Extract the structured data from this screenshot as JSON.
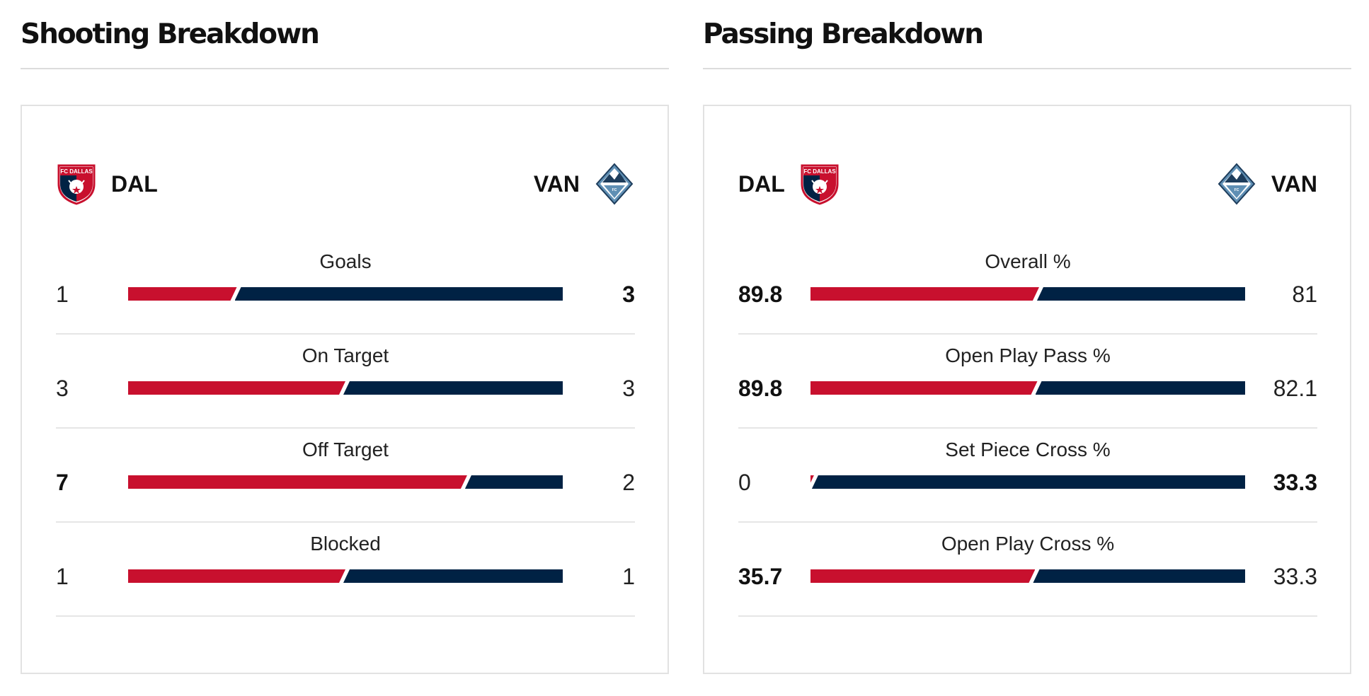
{
  "colors": {
    "dal": "#c8102e",
    "van": "#002244",
    "divider": "#e6e6e6"
  },
  "shooting": {
    "title": "Shooting Breakdown",
    "left_team": {
      "abbr": "DAL",
      "logo": "fc-dallas-crest-icon"
    },
    "right_team": {
      "abbr": "VAN",
      "logo": "vancouver-whitecaps-crest-icon"
    },
    "rows": [
      {
        "label": "Goals",
        "left": "1",
        "right": "3",
        "left_share": 0.25,
        "bold": "right"
      },
      {
        "label": "On Target",
        "left": "3",
        "right": "3",
        "left_share": 0.5,
        "bold": "none"
      },
      {
        "label": "Off Target",
        "left": "7",
        "right": "2",
        "left_share": 0.78,
        "bold": "left"
      },
      {
        "label": "Blocked",
        "left": "1",
        "right": "1",
        "left_share": 0.5,
        "bold": "none"
      }
    ]
  },
  "passing": {
    "title": "Passing Breakdown",
    "left_team": {
      "abbr": "DAL",
      "logo": "fc-dallas-crest-icon"
    },
    "right_team": {
      "abbr": "VAN",
      "logo": "vancouver-whitecaps-crest-icon"
    },
    "rows": [
      {
        "label": "Overall %",
        "left": "89.8",
        "right": "81",
        "left_share": 0.526,
        "bold": "left"
      },
      {
        "label": "Open Play Pass %",
        "left": "89.8",
        "right": "82.1",
        "left_share": 0.522,
        "bold": "left"
      },
      {
        "label": "Set Piece Cross %",
        "left": "0",
        "right": "33.3",
        "left_share": 0.0,
        "bold": "right"
      },
      {
        "label": "Open Play Cross %",
        "left": "35.7",
        "right": "33.3",
        "left_share": 0.517,
        "bold": "left"
      }
    ]
  }
}
